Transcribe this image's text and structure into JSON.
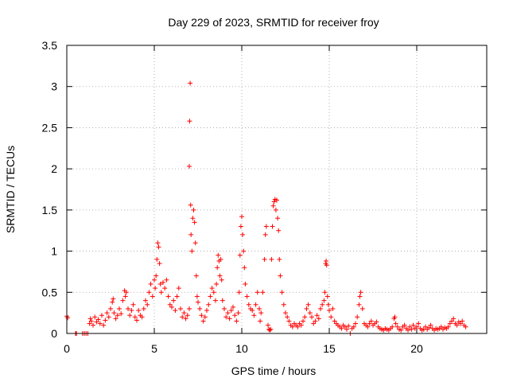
{
  "chart_data": {
    "type": "scatter",
    "title": "Day 229 of 2023, SRMTID for receiver froy",
    "xlabel": "GPS time / hours",
    "ylabel": "SRMTID / TECUs",
    "xlim": [
      0,
      24
    ],
    "ylim": [
      0,
      3.5
    ],
    "x_ticks": [
      0,
      5,
      10,
      15,
      20
    ],
    "x_tick_labels": [
      "0",
      "5",
      "10",
      "15",
      "20"
    ],
    "y_ticks": [
      0,
      0.5,
      1,
      1.5,
      2,
      2.5,
      3,
      3.5
    ],
    "y_tick_labels": [
      "0",
      "0.5",
      "1",
      "1.5",
      "2",
      "2.5",
      "3",
      "3.5"
    ],
    "grid": true,
    "marker": "plus",
    "series": [
      {
        "name": "SRMTID",
        "color": "#ff0000",
        "points": [
          [
            0.0,
            0.21
          ],
          [
            0.05,
            0.19
          ],
          [
            0.5,
            0.0
          ],
          [
            0.55,
            0.0
          ],
          [
            0.9,
            0.0
          ],
          [
            1.0,
            0.0
          ],
          [
            1.1,
            0.0
          ],
          [
            1.2,
            0.0
          ],
          [
            1.3,
            0.12
          ],
          [
            1.35,
            0.18
          ],
          [
            1.4,
            0.15
          ],
          [
            1.5,
            0.1
          ],
          [
            1.6,
            0.2
          ],
          [
            1.7,
            0.14
          ],
          [
            1.8,
            0.17
          ],
          [
            1.9,
            0.12
          ],
          [
            2.0,
            0.22
          ],
          [
            2.1,
            0.1
          ],
          [
            2.2,
            0.16
          ],
          [
            2.3,
            0.25
          ],
          [
            2.4,
            0.2
          ],
          [
            2.5,
            0.3
          ],
          [
            2.6,
            0.38
          ],
          [
            2.65,
            0.42
          ],
          [
            2.7,
            0.25
          ],
          [
            2.8,
            0.18
          ],
          [
            2.9,
            0.22
          ],
          [
            3.0,
            0.3
          ],
          [
            3.1,
            0.24
          ],
          [
            3.2,
            0.4
          ],
          [
            3.3,
            0.52
          ],
          [
            3.35,
            0.45
          ],
          [
            3.4,
            0.5
          ],
          [
            3.5,
            0.3
          ],
          [
            3.6,
            0.22
          ],
          [
            3.7,
            0.28
          ],
          [
            3.8,
            0.35
          ],
          [
            3.9,
            0.2
          ],
          [
            4.0,
            0.16
          ],
          [
            4.1,
            0.28
          ],
          [
            4.2,
            0.22
          ],
          [
            4.3,
            0.2
          ],
          [
            4.4,
            0.3
          ],
          [
            4.5,
            0.4
          ],
          [
            4.6,
            0.35
          ],
          [
            4.7,
            0.5
          ],
          [
            4.8,
            0.6
          ],
          [
            4.9,
            0.45
          ],
          [
            5.0,
            0.65
          ],
          [
            5.05,
            0.55
          ],
          [
            5.1,
            0.7
          ],
          [
            5.15,
            0.9
          ],
          [
            5.2,
            1.1
          ],
          [
            5.25,
            1.05
          ],
          [
            5.3,
            0.85
          ],
          [
            5.35,
            0.6
          ],
          [
            5.4,
            0.5
          ],
          [
            5.5,
            0.62
          ],
          [
            5.6,
            0.55
          ],
          [
            5.7,
            0.65
          ],
          [
            5.8,
            0.45
          ],
          [
            5.9,
            0.35
          ],
          [
            6.0,
            0.32
          ],
          [
            6.1,
            0.4
          ],
          [
            6.2,
            0.28
          ],
          [
            6.3,
            0.45
          ],
          [
            6.4,
            0.55
          ],
          [
            6.5,
            0.3
          ],
          [
            6.6,
            0.2
          ],
          [
            6.7,
            0.25
          ],
          [
            6.8,
            0.18
          ],
          [
            6.9,
            0.22
          ],
          [
            7.0,
            0.3
          ],
          [
            7.0,
            2.03
          ],
          [
            7.02,
            2.58
          ],
          [
            7.05,
            3.04
          ],
          [
            7.08,
            1.56
          ],
          [
            7.1,
            1.2
          ],
          [
            7.15,
            1.0
          ],
          [
            7.2,
            1.4
          ],
          [
            7.25,
            1.5
          ],
          [
            7.3,
            1.35
          ],
          [
            7.35,
            1.1
          ],
          [
            7.4,
            0.7
          ],
          [
            7.45,
            0.45
          ],
          [
            7.5,
            0.38
          ],
          [
            7.6,
            0.3
          ],
          [
            7.7,
            0.22
          ],
          [
            7.8,
            0.15
          ],
          [
            7.9,
            0.2
          ],
          [
            8.0,
            0.28
          ],
          [
            8.1,
            0.35
          ],
          [
            8.2,
            0.45
          ],
          [
            8.3,
            0.55
          ],
          [
            8.4,
            0.5
          ],
          [
            8.5,
            0.4
          ],
          [
            8.55,
            0.6
          ],
          [
            8.6,
            0.8
          ],
          [
            8.65,
            0.95
          ],
          [
            8.7,
            0.88
          ],
          [
            8.75,
            0.7
          ],
          [
            8.8,
            0.9
          ],
          [
            8.85,
            0.65
          ],
          [
            8.9,
            0.4
          ],
          [
            9.0,
            0.3
          ],
          [
            9.1,
            0.2
          ],
          [
            9.2,
            0.25
          ],
          [
            9.3,
            0.18
          ],
          [
            9.4,
            0.28
          ],
          [
            9.5,
            0.32
          ],
          [
            9.6,
            0.22
          ],
          [
            9.7,
            0.15
          ],
          [
            9.8,
            0.25
          ],
          [
            9.85,
            0.5
          ],
          [
            9.9,
            0.95
          ],
          [
            9.95,
            1.3
          ],
          [
            10.0,
            1.42
          ],
          [
            10.05,
            1.2
          ],
          [
            10.1,
            1.0
          ],
          [
            10.15,
            0.8
          ],
          [
            10.2,
            0.6
          ],
          [
            10.3,
            0.45
          ],
          [
            10.4,
            0.35
          ],
          [
            10.5,
            0.3
          ],
          [
            10.6,
            0.28
          ],
          [
            10.7,
            0.22
          ],
          [
            10.8,
            0.35
          ],
          [
            10.9,
            0.5
          ],
          [
            11.0,
            0.3
          ],
          [
            11.05,
            0.15
          ],
          [
            11.1,
            0.25
          ],
          [
            11.2,
            0.5
          ],
          [
            11.3,
            0.9
          ],
          [
            11.35,
            1.2
          ],
          [
            11.4,
            1.3
          ],
          [
            11.5,
            0.1
          ],
          [
            11.55,
            0.05
          ],
          [
            11.6,
            0.04
          ],
          [
            11.65,
            0.05
          ],
          [
            11.7,
            0.9
          ],
          [
            11.75,
            1.3
          ],
          [
            11.8,
            1.55
          ],
          [
            11.85,
            1.6
          ],
          [
            11.9,
            1.63
          ],
          [
            11.95,
            1.5
          ],
          [
            12.0,
            1.62
          ],
          [
            12.05,
            1.4
          ],
          [
            12.1,
            1.25
          ],
          [
            12.15,
            0.9
          ],
          [
            12.2,
            0.7
          ],
          [
            12.3,
            0.5
          ],
          [
            12.4,
            0.35
          ],
          [
            12.5,
            0.25
          ],
          [
            12.6,
            0.2
          ],
          [
            12.7,
            0.15
          ],
          [
            12.8,
            0.1
          ],
          [
            12.9,
            0.08
          ],
          [
            13.0,
            0.12
          ],
          [
            13.1,
            0.1
          ],
          [
            13.2,
            0.08
          ],
          [
            13.3,
            0.12
          ],
          [
            13.4,
            0.1
          ],
          [
            13.5,
            0.15
          ],
          [
            13.6,
            0.2
          ],
          [
            13.7,
            0.3
          ],
          [
            13.8,
            0.35
          ],
          [
            13.9,
            0.25
          ],
          [
            14.0,
            0.2
          ],
          [
            14.1,
            0.12
          ],
          [
            14.2,
            0.15
          ],
          [
            14.3,
            0.22
          ],
          [
            14.4,
            0.18
          ],
          [
            14.5,
            0.3
          ],
          [
            14.6,
            0.35
          ],
          [
            14.7,
            0.4
          ],
          [
            14.75,
            0.5
          ],
          [
            14.8,
            0.85
          ],
          [
            14.82,
            0.88
          ],
          [
            14.85,
            0.83
          ],
          [
            14.9,
            0.45
          ],
          [
            14.95,
            0.35
          ],
          [
            15.0,
            0.28
          ],
          [
            15.1,
            0.2
          ],
          [
            15.2,
            0.3
          ],
          [
            15.3,
            0.15
          ],
          [
            15.4,
            0.12
          ],
          [
            15.5,
            0.1
          ],
          [
            15.6,
            0.08
          ],
          [
            15.7,
            0.06
          ],
          [
            15.8,
            0.1
          ],
          [
            15.9,
            0.08
          ],
          [
            16.0,
            0.05
          ],
          [
            16.1,
            0.09
          ],
          [
            16.2,
            0.0
          ],
          [
            16.3,
            0.06
          ],
          [
            16.4,
            0.08
          ],
          [
            16.5,
            0.12
          ],
          [
            16.6,
            0.2
          ],
          [
            16.7,
            0.35
          ],
          [
            16.75,
            0.45
          ],
          [
            16.8,
            0.5
          ],
          [
            16.9,
            0.3
          ],
          [
            17.0,
            0.12
          ],
          [
            17.1,
            0.1
          ],
          [
            17.2,
            0.08
          ],
          [
            17.3,
            0.12
          ],
          [
            17.4,
            0.15
          ],
          [
            17.5,
            0.1
          ],
          [
            17.6,
            0.12
          ],
          [
            17.7,
            0.14
          ],
          [
            17.8,
            0.08
          ],
          [
            17.9,
            0.06
          ],
          [
            18.0,
            0.05
          ],
          [
            18.1,
            0.04
          ],
          [
            18.2,
            0.06
          ],
          [
            18.3,
            0.05
          ],
          [
            18.4,
            0.04
          ],
          [
            18.5,
            0.06
          ],
          [
            18.6,
            0.08
          ],
          [
            18.7,
            0.18
          ],
          [
            18.75,
            0.2
          ],
          [
            18.8,
            0.12
          ],
          [
            18.9,
            0.08
          ],
          [
            19.0,
            0.05
          ],
          [
            19.1,
            0.04
          ],
          [
            19.2,
            0.08
          ],
          [
            19.3,
            0.1
          ],
          [
            19.4,
            0.06
          ],
          [
            19.5,
            0.04
          ],
          [
            19.6,
            0.08
          ],
          [
            19.7,
            0.05
          ],
          [
            19.8,
            0.1
          ],
          [
            19.9,
            0.06
          ],
          [
            20.0,
            0.08
          ],
          [
            20.1,
            0.12
          ],
          [
            20.2,
            0.06
          ],
          [
            20.3,
            0.04
          ],
          [
            20.4,
            0.05
          ],
          [
            20.5,
            0.08
          ],
          [
            20.6,
            0.05
          ],
          [
            20.7,
            0.07
          ],
          [
            20.8,
            0.1
          ],
          [
            20.9,
            0.06
          ],
          [
            21.0,
            0.04
          ],
          [
            21.1,
            0.06
          ],
          [
            21.2,
            0.05
          ],
          [
            21.3,
            0.06
          ],
          [
            21.4,
            0.08
          ],
          [
            21.5,
            0.05
          ],
          [
            21.6,
            0.07
          ],
          [
            21.7,
            0.06
          ],
          [
            21.8,
            0.08
          ],
          [
            21.9,
            0.12
          ],
          [
            22.0,
            0.15
          ],
          [
            22.1,
            0.18
          ],
          [
            22.2,
            0.12
          ],
          [
            22.3,
            0.1
          ],
          [
            22.4,
            0.14
          ],
          [
            22.5,
            0.12
          ],
          [
            22.6,
            0.15
          ],
          [
            22.7,
            0.1
          ],
          [
            22.8,
            0.08
          ]
        ]
      }
    ]
  }
}
